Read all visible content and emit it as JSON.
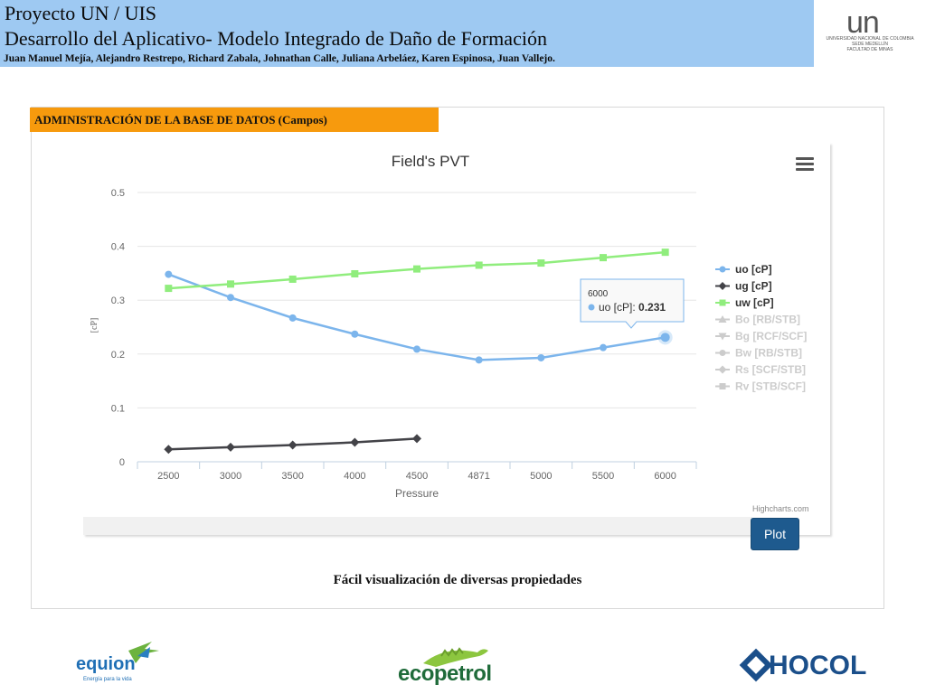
{
  "header": {
    "title_line1": "Proyecto UN / UIS",
    "title_line2": "Desarrollo  del Aplicativo- Modelo Integrado de Daño de Formación",
    "authors": "Juan Manuel Mejía,  Alejandro Restrepo, Richard Zabala, Johnathan Calle, Juliana Arbeláez, Karen Espinosa, Juan Vallejo."
  },
  "un_logo": {
    "mark": "un",
    "line1": "UNIVERSIDAD NACIONAL DE COLOMBIA",
    "line2": "SEDE MEDELLÍN",
    "line3": "FACULTAD DE MINAS"
  },
  "section_label": "ADMINISTRACIÓN DE LA BASE DE DATOS (Campos)",
  "plot_button": "Plot",
  "credit": "Highcharts.com",
  "caption": "Fácil visualización de diversas propiedades",
  "logos": {
    "equion": "equion",
    "equion_tagline": "Energía para la vida",
    "ecopetrol": "ecopetrol",
    "hocol": "HOCOL"
  },
  "colors": {
    "uo": "#7cb5ec",
    "ug": "#434348",
    "uw": "#90ed7d",
    "hidden": "#cccccc",
    "header_bg": "#9ec9f2",
    "section_bg": "#f79a0d",
    "button_bg": "#1e5a8e"
  },
  "chart_data": {
    "type": "line",
    "title": "Field's PVT",
    "xlabel": "Pressure",
    "ylabel": "[cP]",
    "categories": [
      "2500",
      "3000",
      "3500",
      "4000",
      "4500",
      "4871",
      "5000",
      "5500",
      "6000"
    ],
    "ylim": [
      0,
      0.5
    ],
    "yticks": [
      "0",
      "0.1",
      "0.2",
      "0.3",
      "0.4",
      "0.5"
    ],
    "grid": true,
    "legend_position": "right",
    "series": [
      {
        "name": "uo [cP]",
        "marker": "circle",
        "visible": true,
        "values": [
          0.348,
          0.305,
          0.267,
          0.237,
          0.209,
          0.189,
          0.193,
          0.212,
          0.231
        ]
      },
      {
        "name": "ug [cP]",
        "marker": "diamond",
        "visible": true,
        "values": [
          0.023,
          0.027,
          0.031,
          0.036,
          0.043,
          null,
          null,
          null,
          null
        ]
      },
      {
        "name": "uw [cP]",
        "marker": "square",
        "visible": true,
        "values": [
          0.322,
          0.33,
          0.339,
          0.349,
          0.358,
          0.365,
          0.369,
          0.379,
          0.389
        ]
      },
      {
        "name": "Bo [RB/STB]",
        "marker": "triangle",
        "visible": false
      },
      {
        "name": "Bg [RCF/SCF]",
        "marker": "triangle-down",
        "visible": false
      },
      {
        "name": "Bw [RB/STB]",
        "marker": "circle",
        "visible": false
      },
      {
        "name": "Rs [SCF/STB]",
        "marker": "diamond",
        "visible": false
      },
      {
        "name": "Rv [STB/SCF]",
        "marker": "square",
        "visible": false
      }
    ],
    "tooltip": {
      "header": "6000",
      "series": "uo [cP]",
      "value": "0.231"
    }
  }
}
